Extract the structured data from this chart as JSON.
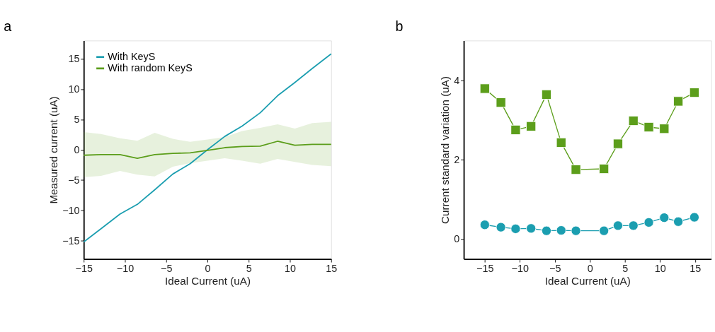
{
  "chart_data": [
    {
      "type": "line",
      "title": "a",
      "xlabel": "Ideal Current (uA)",
      "ylabel": "Measured current (uA)",
      "x": [
        -15,
        -12.9,
        -10.6,
        -8.5,
        -6.4,
        -4.2,
        -2.1,
        0,
        2.1,
        4.2,
        6.4,
        8.5,
        10.6,
        12.7,
        15
      ],
      "series": [
        {
          "name": "With KeyS",
          "color": "#1b9eb0",
          "values": [
            -15.2,
            -13,
            -10.6,
            -9,
            -6.6,
            -4,
            -2.3,
            0,
            2.2,
            3.9,
            6.1,
            8.9,
            11.1,
            13.4,
            15.8
          ]
        },
        {
          "name": "With random KeyS",
          "color": "#5c9e1b",
          "values": [
            -0.9,
            -0.8,
            -0.8,
            -1.4,
            -0.8,
            -0.6,
            -0.5,
            -0.1,
            0.35,
            0.55,
            0.6,
            1.4,
            0.75,
            0.9,
            0.9
          ],
          "lower": [
            -4.5,
            -4.3,
            -3.5,
            -4.1,
            -4.4,
            -2.8,
            -2.2,
            -1.8,
            -1.4,
            -1.8,
            -2.3,
            -1.5,
            -2.0,
            -2.5,
            -2.7
          ],
          "upper": [
            2.9,
            2.6,
            1.9,
            1.5,
            2.8,
            1.8,
            1.3,
            1.7,
            2.1,
            3.1,
            3.6,
            4.2,
            3.5,
            4.4,
            4.6
          ]
        }
      ],
      "xlim": [
        -15,
        15
      ],
      "ylim": [
        -18,
        18
      ],
      "xticks": [
        -15,
        -10,
        -5,
        0,
        5,
        10,
        15
      ],
      "yticks": [
        -15,
        -10,
        -5,
        0,
        5,
        10,
        15
      ],
      "legend": "top left",
      "grid": false
    },
    {
      "type": "line",
      "title": "b",
      "xlabel": "Ideal Current (uA)",
      "ylabel": "Current standard variation (uA)",
      "x": [
        -15,
        -12.7,
        -10.6,
        -8.4,
        -6.2,
        -4.1,
        -2,
        2,
        4,
        6.2,
        8.4,
        10.6,
        12.6,
        14.9
      ],
      "series": [
        {
          "name": "With KeyS",
          "color": "#17a0a8",
          "marker": "circle",
          "values": [
            0.36,
            0.3,
            0.26,
            0.27,
            0.21,
            0.22,
            0.21,
            0.21,
            0.34,
            0.34,
            0.42,
            0.54,
            0.44,
            0.55
          ]
        },
        {
          "name": "With random KeyS",
          "color": "#5b9b12",
          "marker": "square",
          "values": [
            3.79,
            3.44,
            2.75,
            2.84,
            3.64,
            2.43,
            1.75,
            1.77,
            2.4,
            2.98,
            2.82,
            2.78,
            3.47,
            3.69
          ]
        }
      ],
      "xlim": [
        -18,
        17.3
      ],
      "ylim": [
        -0.5,
        5
      ],
      "xticks": [
        -15,
        -10,
        -5,
        0,
        5,
        10,
        15
      ],
      "yticks": [
        0,
        2,
        4
      ],
      "legend": "top left",
      "grid": false
    }
  ]
}
